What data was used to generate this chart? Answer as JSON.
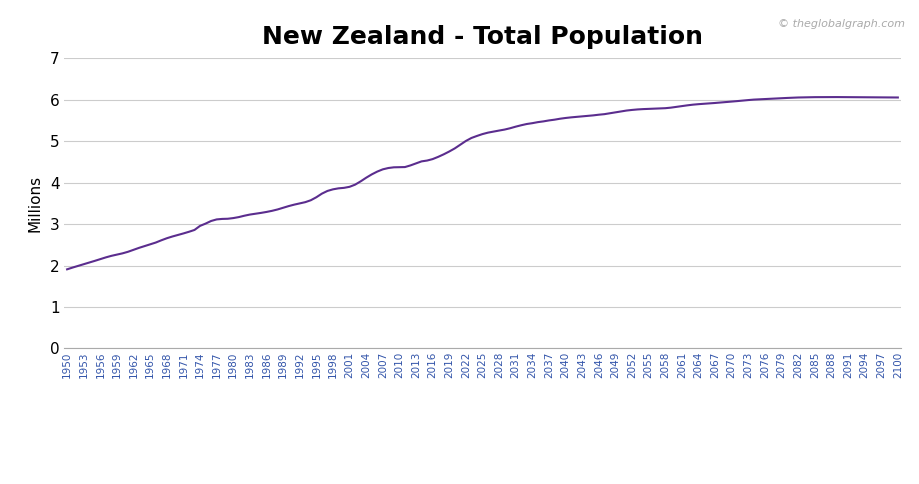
{
  "title": "New Zealand - Total Population",
  "ylabel": "Millions",
  "watermark": "© theglobalgraph.com",
  "line_color": "#5B2D8E",
  "background_color": "#ffffff",
  "ylim": [
    0,
    7
  ],
  "yticks": [
    0,
    1,
    2,
    3,
    4,
    5,
    6,
    7
  ],
  "years": [
    1950,
    1951,
    1952,
    1953,
    1954,
    1955,
    1956,
    1957,
    1958,
    1959,
    1960,
    1961,
    1962,
    1963,
    1964,
    1965,
    1966,
    1967,
    1968,
    1969,
    1970,
    1971,
    1972,
    1973,
    1974,
    1975,
    1976,
    1977,
    1978,
    1979,
    1980,
    1981,
    1982,
    1983,
    1984,
    1985,
    1986,
    1987,
    1988,
    1989,
    1990,
    1991,
    1992,
    1993,
    1994,
    1995,
    1996,
    1997,
    1998,
    1999,
    2000,
    2001,
    2002,
    2003,
    2004,
    2005,
    2006,
    2007,
    2008,
    2009,
    2010,
    2011,
    2012,
    2013,
    2014,
    2015,
    2016,
    2017,
    2018,
    2019,
    2020,
    2021,
    2022,
    2023,
    2024,
    2025,
    2026,
    2027,
    2028,
    2029,
    2030,
    2031,
    2032,
    2033,
    2034,
    2035,
    2036,
    2037,
    2038,
    2039,
    2040,
    2041,
    2042,
    2043,
    2044,
    2045,
    2046,
    2047,
    2048,
    2049,
    2050,
    2051,
    2052,
    2053,
    2054,
    2055,
    2056,
    2057,
    2058,
    2059,
    2060,
    2061,
    2062,
    2063,
    2064,
    2065,
    2066,
    2067,
    2068,
    2069,
    2070,
    2071,
    2072,
    2073,
    2074,
    2075,
    2076,
    2077,
    2078,
    2079,
    2080,
    2081,
    2082,
    2083,
    2084,
    2085,
    2086,
    2087,
    2088,
    2089,
    2090,
    2091,
    2092,
    2093,
    2094,
    2095,
    2096,
    2097,
    2098,
    2099,
    2100
  ],
  "population": [
    1.908,
    1.951,
    1.991,
    2.031,
    2.071,
    2.112,
    2.154,
    2.196,
    2.233,
    2.263,
    2.293,
    2.331,
    2.378,
    2.426,
    2.469,
    2.511,
    2.553,
    2.607,
    2.657,
    2.699,
    2.735,
    2.773,
    2.813,
    2.857,
    2.955,
    3.01,
    3.073,
    3.111,
    3.123,
    3.127,
    3.143,
    3.167,
    3.2,
    3.228,
    3.247,
    3.268,
    3.291,
    3.318,
    3.351,
    3.391,
    3.432,
    3.467,
    3.498,
    3.527,
    3.573,
    3.645,
    3.732,
    3.797,
    3.836,
    3.86,
    3.872,
    3.897,
    3.949,
    4.028,
    4.116,
    4.196,
    4.264,
    4.318,
    4.35,
    4.367,
    4.369,
    4.373,
    4.413,
    4.461,
    4.51,
    4.53,
    4.565,
    4.619,
    4.68,
    4.748,
    4.823,
    4.912,
    5.002,
    5.074,
    5.123,
    5.168,
    5.203,
    5.229,
    5.253,
    5.277,
    5.309,
    5.347,
    5.381,
    5.411,
    5.431,
    5.456,
    5.474,
    5.497,
    5.515,
    5.538,
    5.556,
    5.571,
    5.583,
    5.596,
    5.609,
    5.619,
    5.635,
    5.648,
    5.67,
    5.694,
    5.716,
    5.735,
    5.75,
    5.762,
    5.77,
    5.775,
    5.778,
    5.783,
    5.792,
    5.805,
    5.824,
    5.843,
    5.861,
    5.877,
    5.889,
    5.898,
    5.907,
    5.918,
    5.929,
    5.94,
    5.952,
    5.963,
    5.976,
    5.988,
    5.999,
    6.006,
    6.013,
    6.02,
    6.027,
    6.033,
    6.039,
    6.045,
    6.05,
    6.053,
    6.056,
    6.058,
    6.059,
    6.06,
    6.06,
    6.06,
    6.059,
    6.059,
    6.058,
    6.057,
    6.056,
    6.055,
    6.054,
    6.053,
    6.052,
    6.051,
    6.05
  ],
  "grid_color": "#cccccc",
  "border_color": "#aaaaaa",
  "ytick_color": "#000000",
  "xtick_color": "#3355aa",
  "title_fontsize": 18,
  "ylabel_fontsize": 11,
  "ytick_fontsize": 11,
  "xtick_fontsize": 7.5,
  "watermark_color": "#aaaaaa",
  "watermark_fontsize": 8,
  "line_width": 1.5
}
